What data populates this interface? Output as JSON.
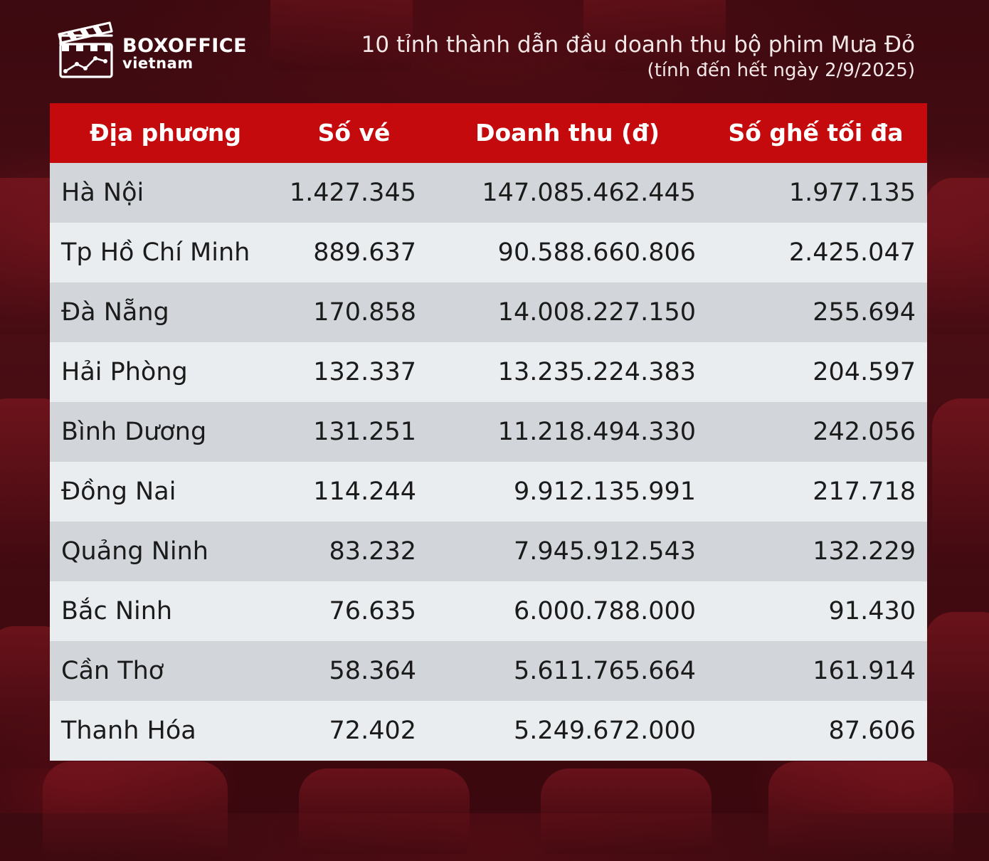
{
  "brand": {
    "logo_top": "BOXOFFICE",
    "logo_bottom": "vietnam"
  },
  "header": {
    "title": "10 tỉnh thành dẫn đầu doanh thu bộ phim Mưa Đỏ",
    "subtitle": "(tính đến hết ngày 2/9/2025)"
  },
  "colors": {
    "header_bg": "#c40a0d",
    "row_dark": "#d2d6db",
    "row_light": "#eaedf0",
    "background": "#4a0d14"
  },
  "chart_data": {
    "type": "table",
    "title": "10 tỉnh thành dẫn đầu doanh thu bộ phim Mưa Đỏ",
    "subtitle": "(tính đến hết ngày 2/9/2025)",
    "columns": [
      "Địa phương",
      "Số vé",
      "Doanh thu (đ)",
      "Số ghế tối đa"
    ],
    "rows": [
      [
        "Hà Nội",
        "1.427.345",
        "147.085.462.445",
        "1.977.135"
      ],
      [
        "Tp Hồ Chí Minh",
        "889.637",
        "90.588.660.806",
        "2.425.047"
      ],
      [
        "Đà Nẵng",
        "170.858",
        "14.008.227.150",
        "255.694"
      ],
      [
        "Hải Phòng",
        "132.337",
        "13.235.224.383",
        "204.597"
      ],
      [
        "Bình Dương",
        "131.251",
        "11.218.494.330",
        "242.056"
      ],
      [
        "Đồng Nai",
        "114.244",
        "9.912.135.991",
        "217.718"
      ],
      [
        "Quảng Ninh",
        "83.232",
        "7.945.912.543",
        "132.229"
      ],
      [
        "Bắc Ninh",
        "76.635",
        "6.000.788.000",
        "91.430"
      ],
      [
        "Cần Thơ",
        "58.364",
        "5.611.765.664",
        "161.914"
      ],
      [
        "Thanh Hóa",
        "72.402",
        "5.249.672.000",
        "87.606"
      ]
    ]
  }
}
